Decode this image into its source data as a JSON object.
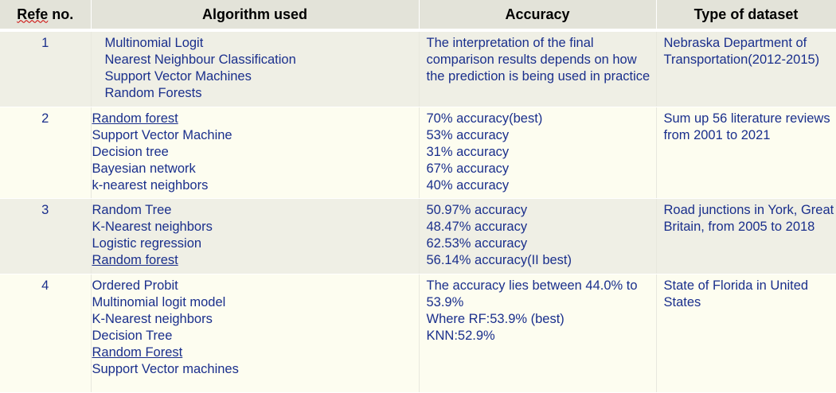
{
  "headers": {
    "ref_word": "Refe",
    "ref_rest": " no.",
    "algorithm": "Algorithm used",
    "accuracy": "Accuracy",
    "dataset": "Type of dataset"
  },
  "rows": [
    {
      "ref": "1",
      "algorithms": [
        {
          "text": "Multinomial Logit",
          "underline": false
        },
        {
          "text": "Nearest Neighbour Classification",
          "underline": false
        },
        {
          "text": "Support Vector Machines",
          "underline": false
        },
        {
          "text": "Random Forests",
          "underline": false
        }
      ],
      "accuracy": [
        "The interpretation of the final comparison results depends on how the prediction is being used in practice"
      ],
      "dataset": "Nebraska Department of Transportation(2012-2015)"
    },
    {
      "ref": "2",
      "algorithms": [
        {
          "text": "Random forest",
          "underline": true
        },
        {
          "text": "Support Vector Machine",
          "underline": false
        },
        {
          "text": "Decision tree",
          "underline": false
        },
        {
          "text": "Bayesian network",
          "underline": false
        },
        {
          "text": "k-nearest neighbors",
          "underline": false
        }
      ],
      "accuracy": [
        "70% accuracy(best)",
        "53% accuracy",
        "31% accuracy",
        "67% accuracy",
        "40% accuracy"
      ],
      "dataset": "Sum up 56 literature reviews from 2001 to 2021"
    },
    {
      "ref": "3",
      "algorithms": [
        {
          "text": "Random Tree",
          "underline": false
        },
        {
          "text": "K-Nearest neighbors",
          "underline": false
        },
        {
          "text": "Logistic regression",
          "underline": false
        },
        {
          "text": "Random forest",
          "underline": true
        }
      ],
      "accuracy": [
        "50.97% accuracy",
        "48.47% accuracy",
        "62.53% accuracy",
        "56.14% accuracy(II best)"
      ],
      "dataset": "Road junctions in York, Great Britain, from 2005 to 2018"
    },
    {
      "ref": "4",
      "algorithms": [
        {
          "text": "Ordered Probit",
          "underline": false
        },
        {
          "text": "Multinomial logit model",
          "underline": false
        },
        {
          "text": "K-Nearest neighbors",
          "underline": false
        },
        {
          "text": "Decision Tree",
          "underline": false
        },
        {
          "text": "Random Forest",
          "underline": true
        },
        {
          "text": "Support Vector machines",
          "underline": false
        }
      ],
      "accuracy": [
        "The accuracy lies between 44.0% to 53.9%",
        "Where RF:53.9% (best)",
        "KNN:52.9%"
      ],
      "dataset": "State of Florida in United States"
    }
  ]
}
